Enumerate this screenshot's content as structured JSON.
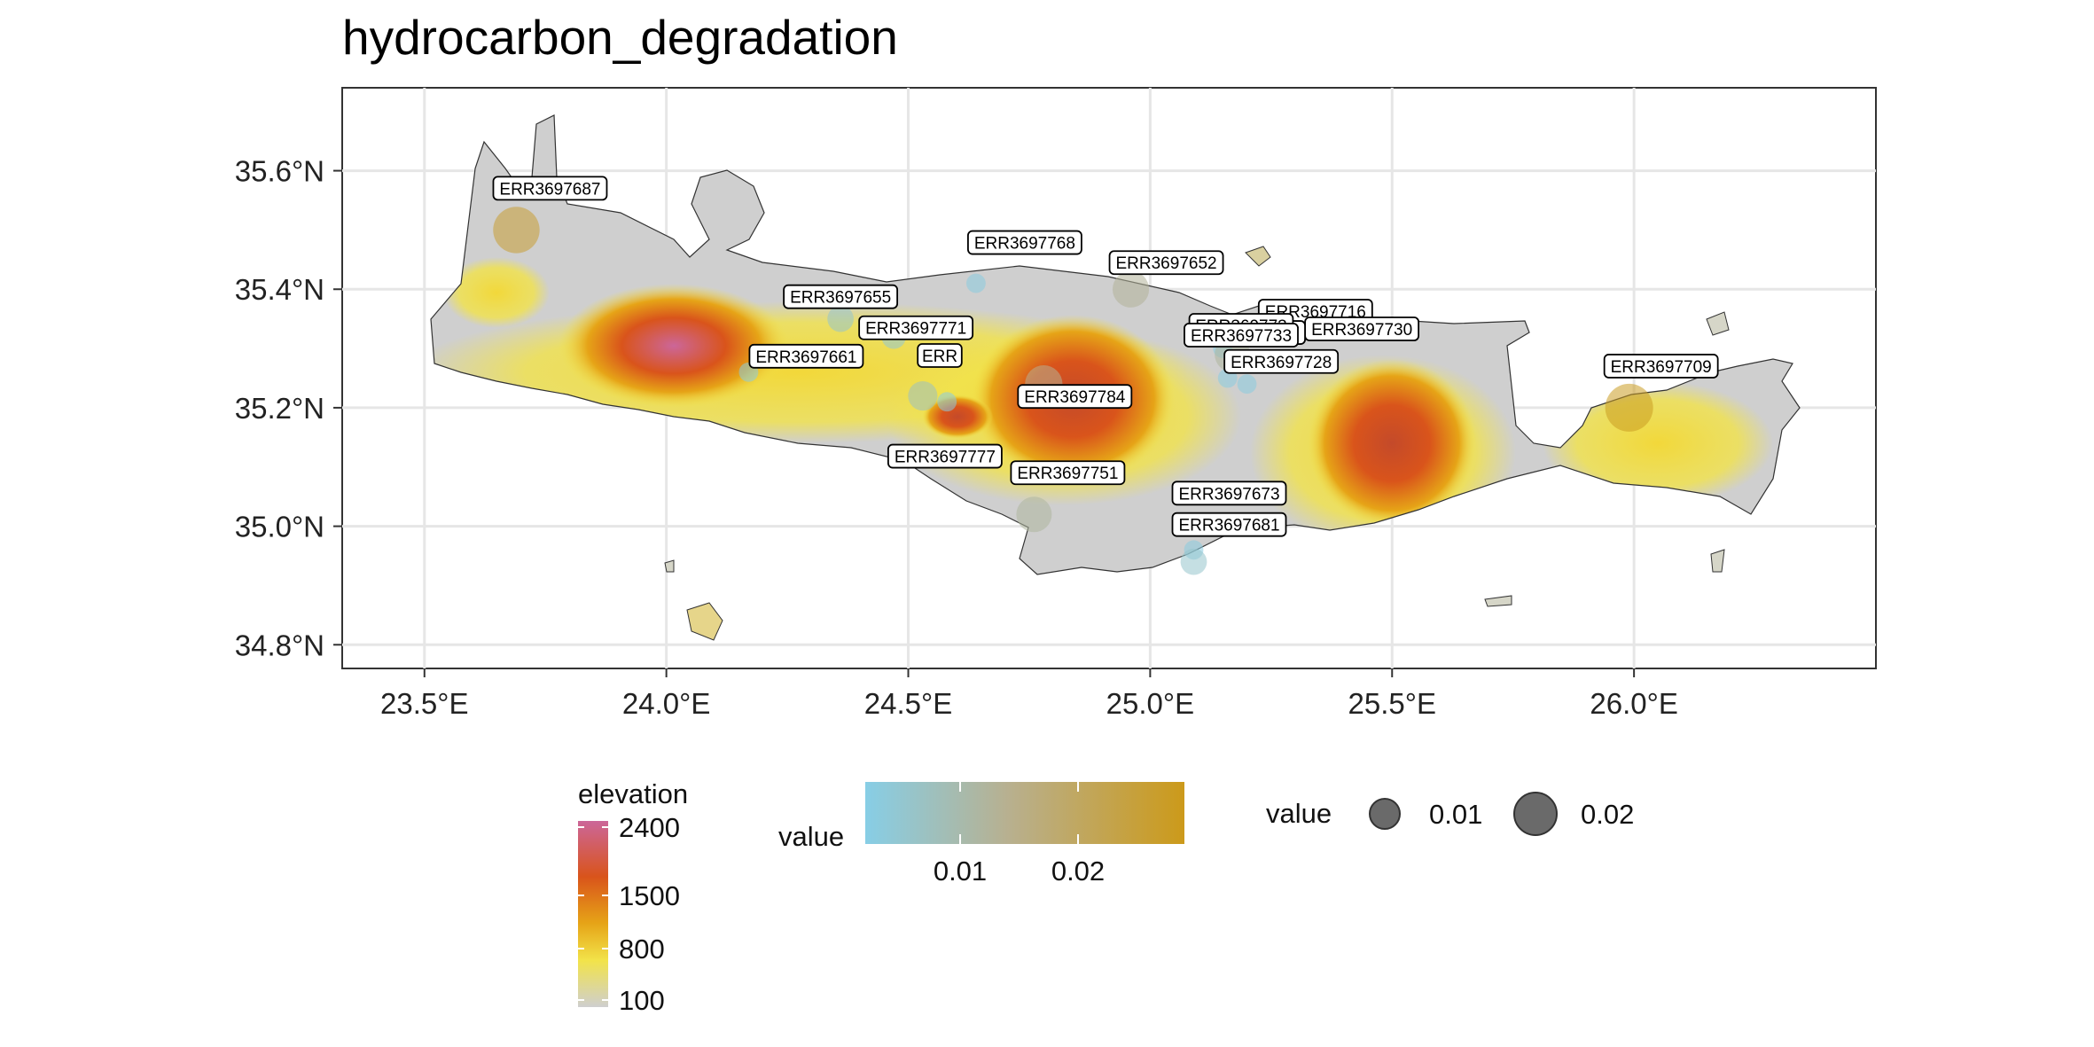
{
  "title": "hydrocarbon_degradation",
  "chart_data": {
    "type": "scatter",
    "title": "hydrocarbon_degradation",
    "xlim": [
      23.33,
      26.5
    ],
    "ylim": [
      34.76,
      35.74
    ],
    "x_ticks": [
      23.5,
      24.0,
      24.5,
      25.0,
      25.5,
      26.0
    ],
    "x_tick_labels": [
      "23.5°E",
      "24.0°E",
      "24.5°E",
      "25.0°E",
      "25.5°E",
      "26.0°E"
    ],
    "y_ticks": [
      34.8,
      35.0,
      35.2,
      35.4,
      35.6
    ],
    "y_tick_labels": [
      "34.8°N",
      "35.0°N",
      "35.2°N",
      "35.4°N",
      "35.6°N"
    ],
    "grid": true,
    "points": [
      {
        "id": "ERR3697687",
        "lon": 23.69,
        "lat": 35.5,
        "value": 0.024,
        "show_label": true
      },
      {
        "id": "ERR3697768",
        "lon": 24.64,
        "lat": 35.41,
        "value": 0.001,
        "show_label": true
      },
      {
        "id": "ERR3697652",
        "lon": 24.96,
        "lat": 35.4,
        "value": 0.012,
        "show_label": true
      },
      {
        "id": "ERR3697655",
        "lon": 24.36,
        "lat": 35.35,
        "value": 0.004,
        "show_label": true
      },
      {
        "id": "ERR3697771",
        "lon": 24.47,
        "lat": 35.32,
        "value": 0.003,
        "show_label": true
      },
      {
        "id": "ERR3697661",
        "lon": 24.17,
        "lat": 35.26,
        "value": 0.001,
        "show_label": true
      },
      {
        "id": "ERR3697716",
        "lon": 25.25,
        "lat": 35.36,
        "value": 0.001,
        "show_label": true
      },
      {
        "id": "ERR3697730",
        "lon": 25.3,
        "lat": 35.33,
        "value": 0.001,
        "show_label": true
      },
      {
        "id": "ERR36977",
        "lon": 25.15,
        "lat": 35.3,
        "value": 0.001,
        "show_label": true
      },
      {
        "id": "ERR3697728",
        "lon": 25.17,
        "lat": 35.29,
        "value": 0.011,
        "show_label": true
      },
      {
        "id": "ERR3697784",
        "lon": 24.78,
        "lat": 35.24,
        "value": 0.013,
        "show_label": true
      },
      {
        "id": "ERR3697777",
        "lon": 24.53,
        "lat": 35.22,
        "value": 0.006,
        "show_label": true
      },
      {
        "id": "ERR3697709",
        "lon": 25.99,
        "lat": 35.2,
        "value": 0.026,
        "show_label": true
      },
      {
        "id": "ERR3697751",
        "lon": 24.76,
        "lat": 35.02,
        "value": 0.011,
        "show_label": true
      },
      {
        "id": "ERR3697673",
        "lon": 25.09,
        "lat": 34.96,
        "value": 0.001,
        "show_label": true
      },
      {
        "id": "ERR3697681",
        "lon": 25.09,
        "lat": 34.94,
        "value": 0.004,
        "show_label": true
      },
      {
        "id": "",
        "lon": 24.58,
        "lat": 35.21,
        "value": 0.001,
        "show_label": false
      },
      {
        "id": "",
        "lon": 25.2,
        "lat": 35.24,
        "value": 0.001,
        "show_label": false
      },
      {
        "id": "",
        "lon": 25.16,
        "lat": 35.25,
        "value": 0.001,
        "show_label": false
      }
    ],
    "label_fragments": [
      "ERR",
      "ERR369773",
      "ERR3697733"
    ]
  },
  "legend": {
    "elevation": {
      "title": "elevation",
      "ticks": [
        "2400",
        "1500",
        "800",
        "100"
      ],
      "colors": [
        "#cc6699",
        "#d9541b",
        "#e6a417",
        "#f2e34a",
        "#cfcfcf"
      ]
    },
    "color_scale": {
      "title": "value",
      "ticks": [
        "0.01",
        "0.02"
      ],
      "colors": [
        "#87cee6",
        "#b8b08f",
        "#cc9a1a"
      ]
    },
    "size_scale": {
      "title": "value",
      "ticks": [
        "0.01",
        "0.02"
      ]
    }
  }
}
